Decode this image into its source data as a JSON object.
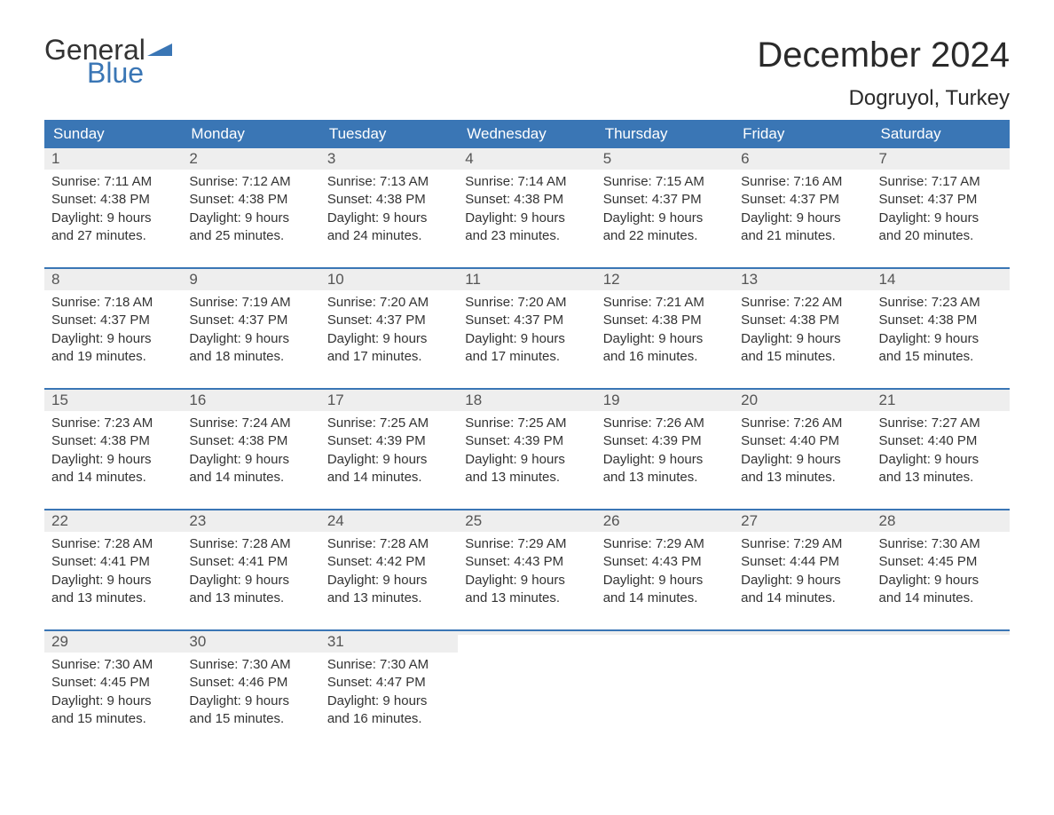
{
  "logo": {
    "text_general": "General",
    "text_blue": "Blue",
    "flag_color": "#3a76b5",
    "general_color": "#333333"
  },
  "header": {
    "month_title": "December 2024",
    "location": "Dogruyol, Turkey"
  },
  "colors": {
    "header_bg": "#3a76b5",
    "header_text": "#ffffff",
    "daynum_bg": "#eeeeee",
    "daynum_text": "#555555",
    "body_text": "#333333",
    "row_divider": "#3a76b5",
    "background": "#ffffff"
  },
  "typography": {
    "month_title_fontsize": 40,
    "location_fontsize": 24,
    "weekday_fontsize": 17,
    "daynum_fontsize": 17,
    "body_fontsize": 15
  },
  "weekdays": [
    "Sunday",
    "Monday",
    "Tuesday",
    "Wednesday",
    "Thursday",
    "Friday",
    "Saturday"
  ],
  "weeks": [
    [
      {
        "day": "1",
        "sunrise": "Sunrise: 7:11 AM",
        "sunset": "Sunset: 4:38 PM",
        "daylight1": "Daylight: 9 hours",
        "daylight2": "and 27 minutes."
      },
      {
        "day": "2",
        "sunrise": "Sunrise: 7:12 AM",
        "sunset": "Sunset: 4:38 PM",
        "daylight1": "Daylight: 9 hours",
        "daylight2": "and 25 minutes."
      },
      {
        "day": "3",
        "sunrise": "Sunrise: 7:13 AM",
        "sunset": "Sunset: 4:38 PM",
        "daylight1": "Daylight: 9 hours",
        "daylight2": "and 24 minutes."
      },
      {
        "day": "4",
        "sunrise": "Sunrise: 7:14 AM",
        "sunset": "Sunset: 4:38 PM",
        "daylight1": "Daylight: 9 hours",
        "daylight2": "and 23 minutes."
      },
      {
        "day": "5",
        "sunrise": "Sunrise: 7:15 AM",
        "sunset": "Sunset: 4:37 PM",
        "daylight1": "Daylight: 9 hours",
        "daylight2": "and 22 minutes."
      },
      {
        "day": "6",
        "sunrise": "Sunrise: 7:16 AM",
        "sunset": "Sunset: 4:37 PM",
        "daylight1": "Daylight: 9 hours",
        "daylight2": "and 21 minutes."
      },
      {
        "day": "7",
        "sunrise": "Sunrise: 7:17 AM",
        "sunset": "Sunset: 4:37 PM",
        "daylight1": "Daylight: 9 hours",
        "daylight2": "and 20 minutes."
      }
    ],
    [
      {
        "day": "8",
        "sunrise": "Sunrise: 7:18 AM",
        "sunset": "Sunset: 4:37 PM",
        "daylight1": "Daylight: 9 hours",
        "daylight2": "and 19 minutes."
      },
      {
        "day": "9",
        "sunrise": "Sunrise: 7:19 AM",
        "sunset": "Sunset: 4:37 PM",
        "daylight1": "Daylight: 9 hours",
        "daylight2": "and 18 minutes."
      },
      {
        "day": "10",
        "sunrise": "Sunrise: 7:20 AM",
        "sunset": "Sunset: 4:37 PM",
        "daylight1": "Daylight: 9 hours",
        "daylight2": "and 17 minutes."
      },
      {
        "day": "11",
        "sunrise": "Sunrise: 7:20 AM",
        "sunset": "Sunset: 4:37 PM",
        "daylight1": "Daylight: 9 hours",
        "daylight2": "and 17 minutes."
      },
      {
        "day": "12",
        "sunrise": "Sunrise: 7:21 AM",
        "sunset": "Sunset: 4:38 PM",
        "daylight1": "Daylight: 9 hours",
        "daylight2": "and 16 minutes."
      },
      {
        "day": "13",
        "sunrise": "Sunrise: 7:22 AM",
        "sunset": "Sunset: 4:38 PM",
        "daylight1": "Daylight: 9 hours",
        "daylight2": "and 15 minutes."
      },
      {
        "day": "14",
        "sunrise": "Sunrise: 7:23 AM",
        "sunset": "Sunset: 4:38 PM",
        "daylight1": "Daylight: 9 hours",
        "daylight2": "and 15 minutes."
      }
    ],
    [
      {
        "day": "15",
        "sunrise": "Sunrise: 7:23 AM",
        "sunset": "Sunset: 4:38 PM",
        "daylight1": "Daylight: 9 hours",
        "daylight2": "and 14 minutes."
      },
      {
        "day": "16",
        "sunrise": "Sunrise: 7:24 AM",
        "sunset": "Sunset: 4:38 PM",
        "daylight1": "Daylight: 9 hours",
        "daylight2": "and 14 minutes."
      },
      {
        "day": "17",
        "sunrise": "Sunrise: 7:25 AM",
        "sunset": "Sunset: 4:39 PM",
        "daylight1": "Daylight: 9 hours",
        "daylight2": "and 14 minutes."
      },
      {
        "day": "18",
        "sunrise": "Sunrise: 7:25 AM",
        "sunset": "Sunset: 4:39 PM",
        "daylight1": "Daylight: 9 hours",
        "daylight2": "and 13 minutes."
      },
      {
        "day": "19",
        "sunrise": "Sunrise: 7:26 AM",
        "sunset": "Sunset: 4:39 PM",
        "daylight1": "Daylight: 9 hours",
        "daylight2": "and 13 minutes."
      },
      {
        "day": "20",
        "sunrise": "Sunrise: 7:26 AM",
        "sunset": "Sunset: 4:40 PM",
        "daylight1": "Daylight: 9 hours",
        "daylight2": "and 13 minutes."
      },
      {
        "day": "21",
        "sunrise": "Sunrise: 7:27 AM",
        "sunset": "Sunset: 4:40 PM",
        "daylight1": "Daylight: 9 hours",
        "daylight2": "and 13 minutes."
      }
    ],
    [
      {
        "day": "22",
        "sunrise": "Sunrise: 7:28 AM",
        "sunset": "Sunset: 4:41 PM",
        "daylight1": "Daylight: 9 hours",
        "daylight2": "and 13 minutes."
      },
      {
        "day": "23",
        "sunrise": "Sunrise: 7:28 AM",
        "sunset": "Sunset: 4:41 PM",
        "daylight1": "Daylight: 9 hours",
        "daylight2": "and 13 minutes."
      },
      {
        "day": "24",
        "sunrise": "Sunrise: 7:28 AM",
        "sunset": "Sunset: 4:42 PM",
        "daylight1": "Daylight: 9 hours",
        "daylight2": "and 13 minutes."
      },
      {
        "day": "25",
        "sunrise": "Sunrise: 7:29 AM",
        "sunset": "Sunset: 4:43 PM",
        "daylight1": "Daylight: 9 hours",
        "daylight2": "and 13 minutes."
      },
      {
        "day": "26",
        "sunrise": "Sunrise: 7:29 AM",
        "sunset": "Sunset: 4:43 PM",
        "daylight1": "Daylight: 9 hours",
        "daylight2": "and 14 minutes."
      },
      {
        "day": "27",
        "sunrise": "Sunrise: 7:29 AM",
        "sunset": "Sunset: 4:44 PM",
        "daylight1": "Daylight: 9 hours",
        "daylight2": "and 14 minutes."
      },
      {
        "day": "28",
        "sunrise": "Sunrise: 7:30 AM",
        "sunset": "Sunset: 4:45 PM",
        "daylight1": "Daylight: 9 hours",
        "daylight2": "and 14 minutes."
      }
    ],
    [
      {
        "day": "29",
        "sunrise": "Sunrise: 7:30 AM",
        "sunset": "Sunset: 4:45 PM",
        "daylight1": "Daylight: 9 hours",
        "daylight2": "and 15 minutes."
      },
      {
        "day": "30",
        "sunrise": "Sunrise: 7:30 AM",
        "sunset": "Sunset: 4:46 PM",
        "daylight1": "Daylight: 9 hours",
        "daylight2": "and 15 minutes."
      },
      {
        "day": "31",
        "sunrise": "Sunrise: 7:30 AM",
        "sunset": "Sunset: 4:47 PM",
        "daylight1": "Daylight: 9 hours",
        "daylight2": "and 16 minutes."
      },
      {
        "day": "",
        "sunrise": "",
        "sunset": "",
        "daylight1": "",
        "daylight2": ""
      },
      {
        "day": "",
        "sunrise": "",
        "sunset": "",
        "daylight1": "",
        "daylight2": ""
      },
      {
        "day": "",
        "sunrise": "",
        "sunset": "",
        "daylight1": "",
        "daylight2": ""
      },
      {
        "day": "",
        "sunrise": "",
        "sunset": "",
        "daylight1": "",
        "daylight2": ""
      }
    ]
  ]
}
